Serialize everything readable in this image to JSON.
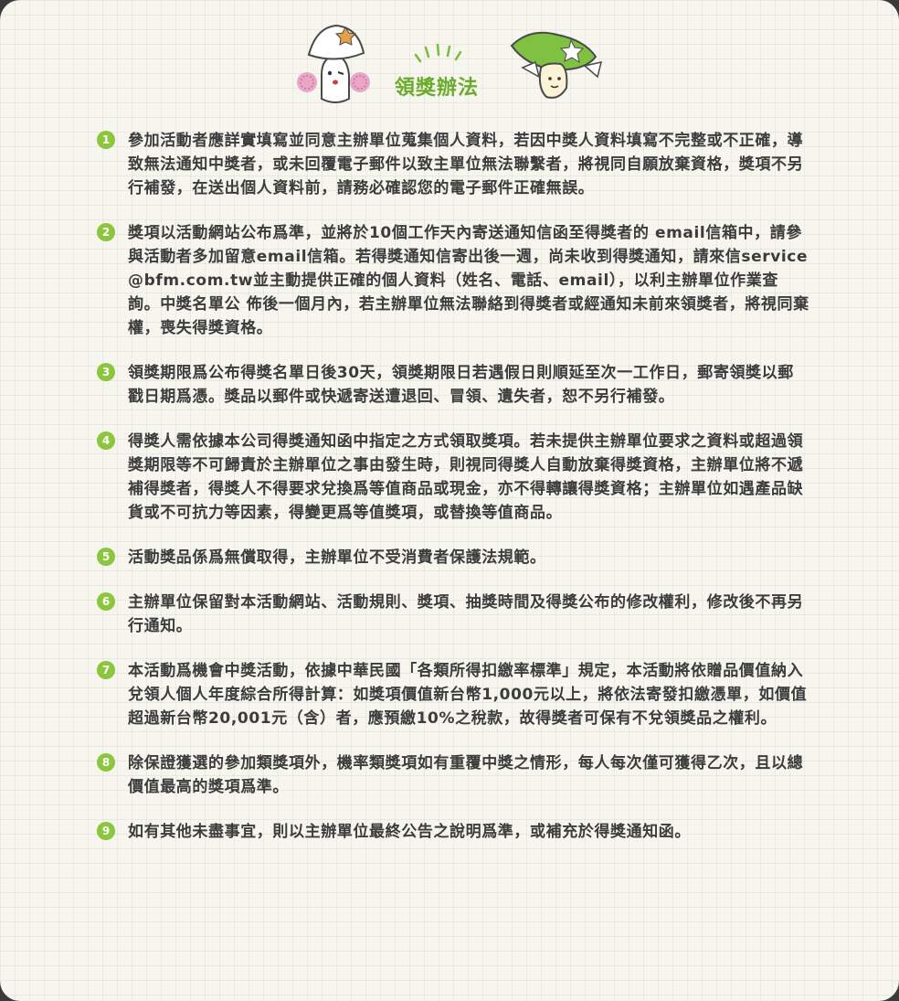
{
  "header": {
    "title": "領獎辦法"
  },
  "colors": {
    "accent": "#8cc63e",
    "title": "#6aab2c",
    "text": "#3c3c3c",
    "background": "#f6f5ee"
  },
  "rules": [
    {
      "num": "1",
      "text": "參加活動者應詳實填寫並同意主辦單位蒐集個人資料，若因中獎人資料填寫不完整或不正確，導致無法通知中獎者，或未回覆電子郵件以致主單位無法聯繫者，將視同自願放棄資格，獎項不另行補發，在送出個人資料前，請務必確認您的電子郵件正確無誤。"
    },
    {
      "num": "2",
      "text": "獎項以活動網站公布爲準，並將於10個工作天內寄送通知信函至得獎者的 email信箱中，請參與活動者多加留意email信箱。若得獎通知信寄出後一週，尚未收到得獎通知，請來信service@bfm.com.tw並主動提供正確的個人資料（姓名、電話、email），以利主辦單位作業查詢。中獎名單公 佈後一個月內，若主辦單位無法聯絡到得獎者或經通知未前來領獎者，將視同棄權，喪失得獎資格。"
    },
    {
      "num": "3",
      "text": "領獎期限爲公布得獎名單日後30天，領獎期限日若遇假日則順延至次一工作日，郵寄領獎以郵戳日期爲憑。獎品以郵件或快遞寄送遭退回、冒領、遺失者，恕不另行補發。"
    },
    {
      "num": "4",
      "text": "得獎人需依據本公司得獎通知函中指定之方式領取獎項。若未提供主辦單位要求之資料或超過領獎期限等不可歸責於主辦單位之事由發生時，則視同得獎人自動放棄得獎資格，主辦單位將不遞補得獎者，得獎人不得要求兌換爲等值商品或現金，亦不得轉讓得獎資格；主辦單位如遇產品缺貨或不可抗力等因素，得變更爲等值獎項，或替換等值商品。"
    },
    {
      "num": "5",
      "text": "活動獎品係爲無償取得，主辦單位不受消費者保護法規範。"
    },
    {
      "num": "6",
      "text": "主辦單位保留對本活動網站、活動規則、獎項、抽獎時間及得獎公布的修改權利，修改後不再另行通知。"
    },
    {
      "num": "7",
      "text": "本活動爲機會中獎活動，依據中華民國「各類所得扣繳率標準」規定，本活動將依贈品價值納入兌領人個人年度綜合所得計算：如獎項價值新台幣1,000元以上，將依法寄發扣繳憑單，如價值超過新台幣20,001元（含）者，應預繳10%之稅款，故得獎者可保有不兌領獎品之權利。"
    },
    {
      "num": "8",
      "text": "除保證獲選的參加類獎項外，機率類獎項如有重覆中獎之情形，每人每次僅可獲得乙次，且以總價值最高的獎項爲準。"
    },
    {
      "num": "9",
      "text": "如有其他未盡事宜，則以主辦單位最終公告之說明爲準，或補充於得獎通知函。"
    }
  ]
}
